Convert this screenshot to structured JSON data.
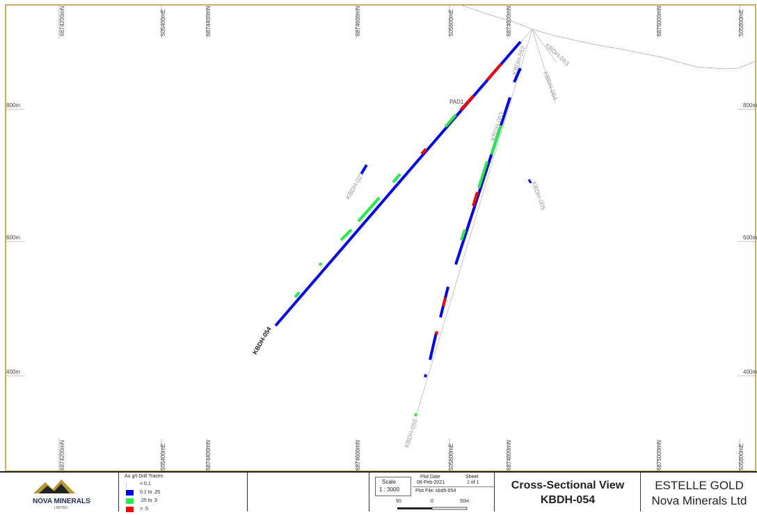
{
  "grid_top": [
    "6874200mN",
    "505400mE",
    "6874400mN",
    "6874600mN",
    "505600mE",
    "6874800mN",
    "6875000mN",
    "505800mE"
  ],
  "grid_bottom": [
    "6874200mN",
    "505400mE",
    "6874400mN",
    "6874600mN",
    "505600mE",
    "6874800mN",
    "6875000mN",
    "505800mE"
  ],
  "rl_left": [
    "800m",
    "600m",
    "400m"
  ],
  "rl_right": [
    "800m",
    "600m",
    "400m"
  ],
  "traces": {
    "main": "KBDH-054",
    "t055": "KBDH-055",
    "t052": "KBDH-052",
    "t063": "KBDH-063",
    "t064": "KBDH-064",
    "t027": "KBDH-027",
    "t005": "KBDH-005",
    "t053": "KBDH-053",
    "pad": "PAD1"
  },
  "legend": {
    "title": "Au g/t Drill Traces",
    "items": [
      {
        "label": "< 0.1",
        "color": "#cccccc"
      },
      {
        "label": "0.1 to .25",
        "color": "#0000ff"
      },
      {
        "label": ".25 to .5",
        "color": "#22ee44"
      },
      {
        "label": "> .5",
        "color": "#ff0000"
      }
    ]
  },
  "company": {
    "name": "NOVA MINERALS",
    "sub": "LIMITED"
  },
  "scale": {
    "label": "Scale",
    "value": "1 : 3000",
    "bar_left": "50",
    "bar_mid": "0",
    "bar_right": "50m"
  },
  "plot": {
    "date_label": "Plot Date",
    "date": "08-Feb-2021",
    "sheet_label": "Sheet",
    "sheet": "1 of 1",
    "file": "Plot File: kbdh-054"
  },
  "title": {
    "line1": "Cross-Sectional View",
    "line2": "KBDH-054"
  },
  "project": {
    "line1": "ESTELLE GOLD",
    "line2": "Nova Minerals Ltd"
  },
  "colors": {
    "frame": "#b8962e",
    "blue": "#0000ff",
    "green": "#22ee44",
    "red": "#ff0000"
  }
}
